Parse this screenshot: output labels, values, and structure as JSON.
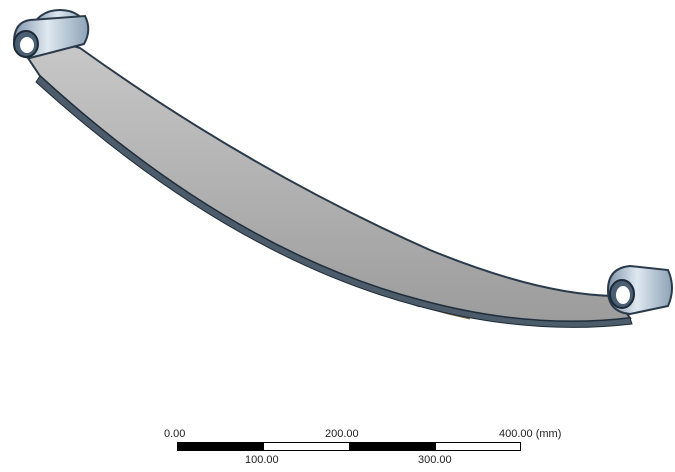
{
  "scale_bar": {
    "top_labels": [
      "0.00",
      "200.00",
      "400.00 (mm)"
    ],
    "bottom_labels": [
      "100.00",
      "300.00"
    ],
    "segment_colors": [
      "#000000",
      "#ffffff",
      "#000000",
      "#ffffff"
    ]
  },
  "model": {
    "name": "leaf spring",
    "leaf_color": "#a8a8a8",
    "edge_color": "#3a4a5a",
    "eye_color": "#9fb4c8"
  }
}
